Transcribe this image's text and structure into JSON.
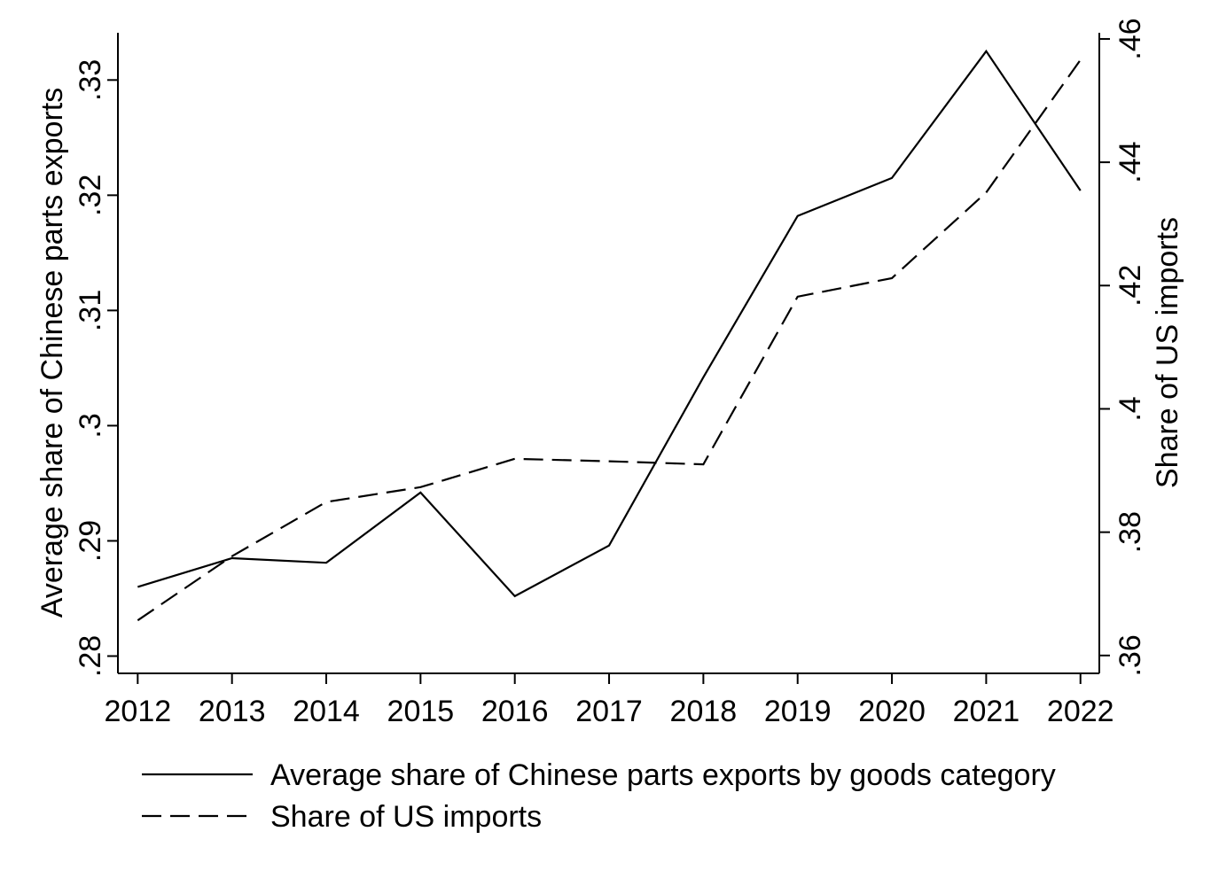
{
  "chart_data": {
    "type": "line",
    "x": [
      2012,
      2013,
      2014,
      2015,
      2016,
      2017,
      2018,
      2019,
      2020,
      2021,
      2022
    ],
    "xlim": [
      2011.79,
      2022.2
    ],
    "xticks": [
      2012,
      2013,
      2014,
      2015,
      2016,
      2017,
      2018,
      2019,
      2020,
      2021,
      2022
    ],
    "ylabel": "Average share of Chinese parts exports",
    "y2label": "Share of US imports",
    "ylim": [
      0.2785,
      0.3341
    ],
    "yticks": [
      {
        "value": 0.28,
        "label": ".28"
      },
      {
        "value": 0.29,
        "label": ".29"
      },
      {
        "value": 0.3,
        "label": ".3"
      },
      {
        "value": 0.31,
        "label": ".31"
      },
      {
        "value": 0.32,
        "label": ".32"
      },
      {
        "value": 0.33,
        "label": ".33"
      }
    ],
    "y2lim": [
      0.3571,
      0.461
    ],
    "y2ticks": [
      {
        "value": 0.36,
        "label": ".36"
      },
      {
        "value": 0.38,
        "label": ".38"
      },
      {
        "value": 0.4,
        "label": ".4"
      },
      {
        "value": 0.42,
        "label": ".42"
      },
      {
        "value": 0.44,
        "label": ".44"
      },
      {
        "value": 0.46,
        "label": ".46"
      }
    ],
    "grid": false,
    "legend": "bottom",
    "series": [
      {
        "name": "Average share of Chinese parts exports by goods category",
        "color": "#000000",
        "dash": "solid",
        "values": [
          0.286,
          0.2885,
          0.2881,
          0.2942,
          0.2852,
          0.2896,
          0.3042,
          0.3182,
          0.3215,
          0.3325,
          0.3204
        ]
      },
      {
        "name": "Share of US imports",
        "color": "#000000",
        "dash": "dashed",
        "axis": "y2",
        "values": [
          0.3657,
          0.3761,
          0.3849,
          0.3873,
          0.3919,
          0.3915,
          0.391,
          0.4182,
          0.4212,
          0.4351,
          0.4566
        ]
      }
    ]
  }
}
